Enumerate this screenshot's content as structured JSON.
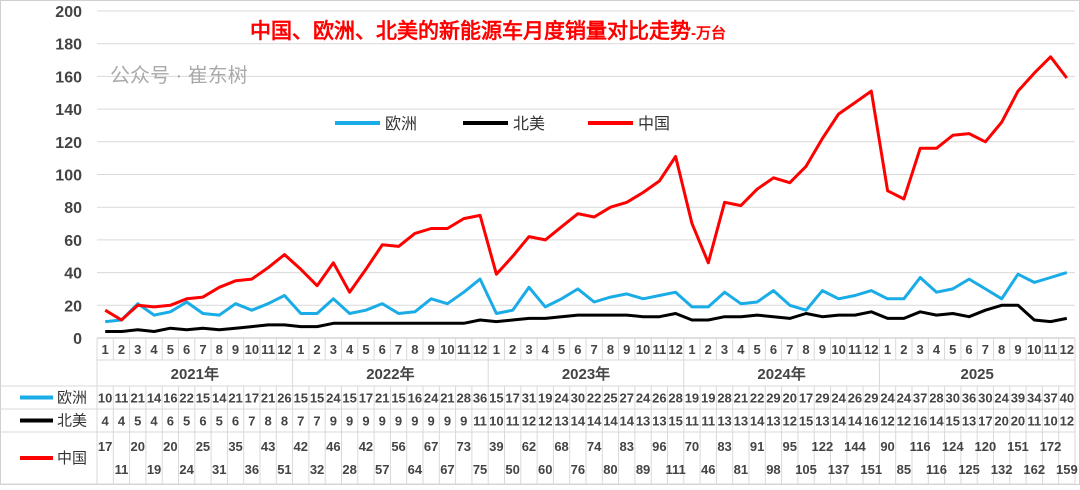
{
  "chart_data": {
    "type": "line",
    "title": "中国、欧洲、北美的新能源车月度销量对比走势",
    "title_suffix": "-万台",
    "ylim": [
      0,
      200
    ],
    "yticks": [
      0,
      20,
      40,
      60,
      80,
      100,
      120,
      140,
      160,
      180,
      200
    ],
    "grid": true,
    "legend_placement": "top-center",
    "years": [
      "2021年",
      "2022年",
      "2023年",
      "2024年",
      "2025"
    ],
    "months": [
      "1",
      "2",
      "3",
      "4",
      "5",
      "6",
      "7",
      "8",
      "9",
      "10",
      "11",
      "12"
    ],
    "series": [
      {
        "name": "欧洲",
        "color": "#1AACE6",
        "values": [
          10,
          11,
          21,
          14,
          16,
          22,
          15,
          14,
          21,
          17,
          21,
          26,
          15,
          15,
          24,
          15,
          17,
          21,
          15,
          16,
          24,
          21,
          28,
          36,
          15,
          17,
          31,
          19,
          24,
          30,
          22,
          25,
          27,
          24,
          26,
          28,
          19,
          19,
          28,
          21,
          22,
          29,
          20,
          17,
          29,
          24,
          26,
          29,
          24,
          24,
          37,
          28,
          30,
          36,
          30,
          24,
          39,
          34,
          37,
          40
        ]
      },
      {
        "name": "北美",
        "color": "#000000",
        "values": [
          4,
          4,
          5,
          4,
          6,
          5,
          6,
          5,
          6,
          7,
          8,
          8,
          7,
          7,
          9,
          9,
          9,
          9,
          9,
          9,
          9,
          9,
          9,
          11,
          10,
          11,
          12,
          12,
          13,
          14,
          14,
          14,
          14,
          13,
          13,
          15,
          11,
          11,
          13,
          13,
          14,
          13,
          12,
          15,
          13,
          14,
          14,
          16,
          12,
          12,
          16,
          14,
          15,
          13,
          17,
          20,
          20,
          11,
          10,
          12
        ]
      },
      {
        "name": "中国",
        "color": "#FF0000",
        "values": [
          17,
          11,
          20,
          19,
          20,
          24,
          25,
          31,
          35,
          36,
          43,
          51,
          42,
          32,
          46,
          28,
          42,
          57,
          56,
          64,
          67,
          67,
          73,
          75,
          39,
          50,
          62,
          60,
          68,
          76,
          74,
          80,
          83,
          89,
          96,
          111,
          70,
          46,
          83,
          81,
          91,
          98,
          95,
          105,
          122,
          137,
          144,
          151,
          90,
          85,
          116,
          116,
          124,
          125,
          120,
          132,
          151,
          162,
          172,
          159
        ]
      }
    ]
  },
  "watermark": "公众号 · 崔东树"
}
